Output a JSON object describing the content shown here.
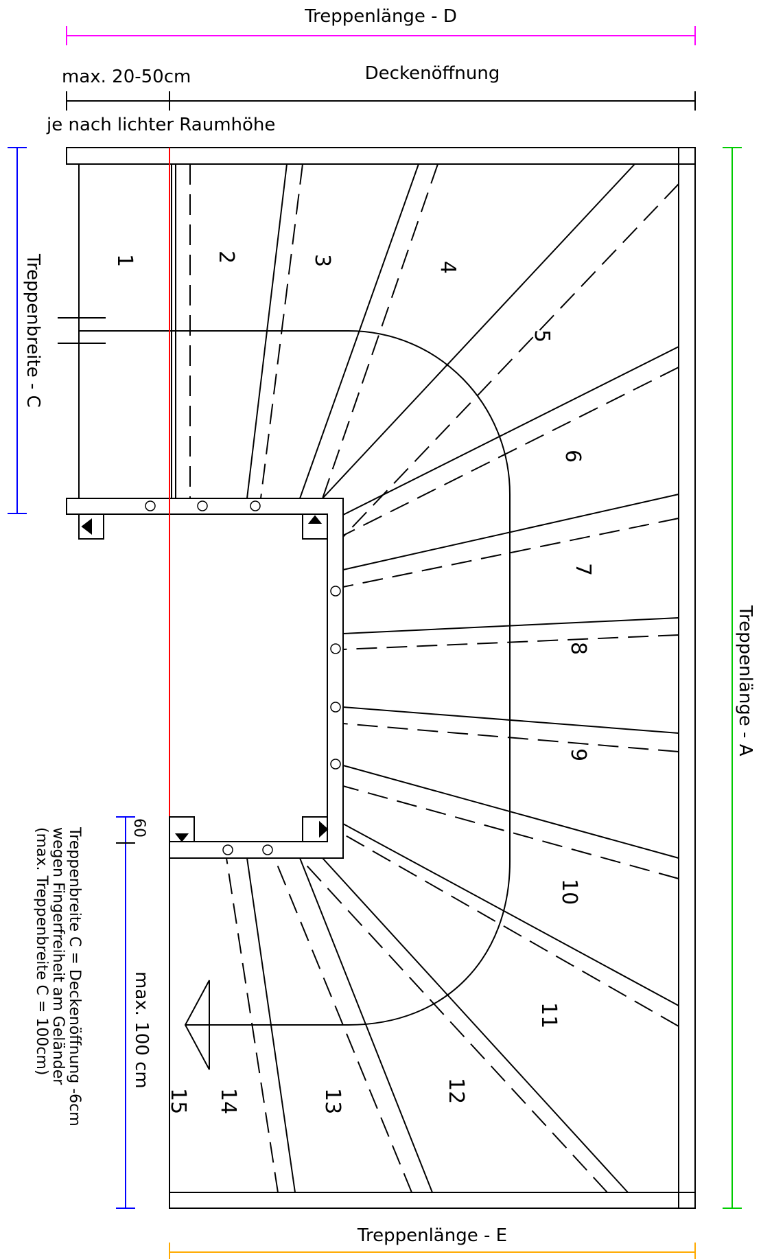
{
  "dimensions": {
    "length_d": "Treppenlänge - D",
    "max_offset": "max. 20-50cm",
    "ceiling_opening": "Deckenöffnung",
    "room_height_note": "je nach lichter Raumhöhe",
    "width_c": "Treppenbreite - C",
    "length_a": "Treppenlänge - A",
    "length_e": "Treppenlänge - E",
    "gap_60": "60",
    "max_100": "max. 100 cm"
  },
  "note": {
    "line1": "Treppenbreite C = Deckenöffnung -6cm",
    "line2": "wegen Fingerfreiheit am Geländer",
    "line3": "(max. Treppenbreite C = 100cm)"
  },
  "steps": [
    "1",
    "2",
    "3",
    "4",
    "5",
    "6",
    "7",
    "8",
    "9",
    "10",
    "11",
    "12",
    "13",
    "14",
    "15"
  ],
  "colors": {
    "length_d": "#ff00ff",
    "width_c": "#0000ff",
    "length_a": "#00cc00",
    "length_e": "#ffaa00",
    "center_line": "#ff0000",
    "lines": "#000000"
  }
}
